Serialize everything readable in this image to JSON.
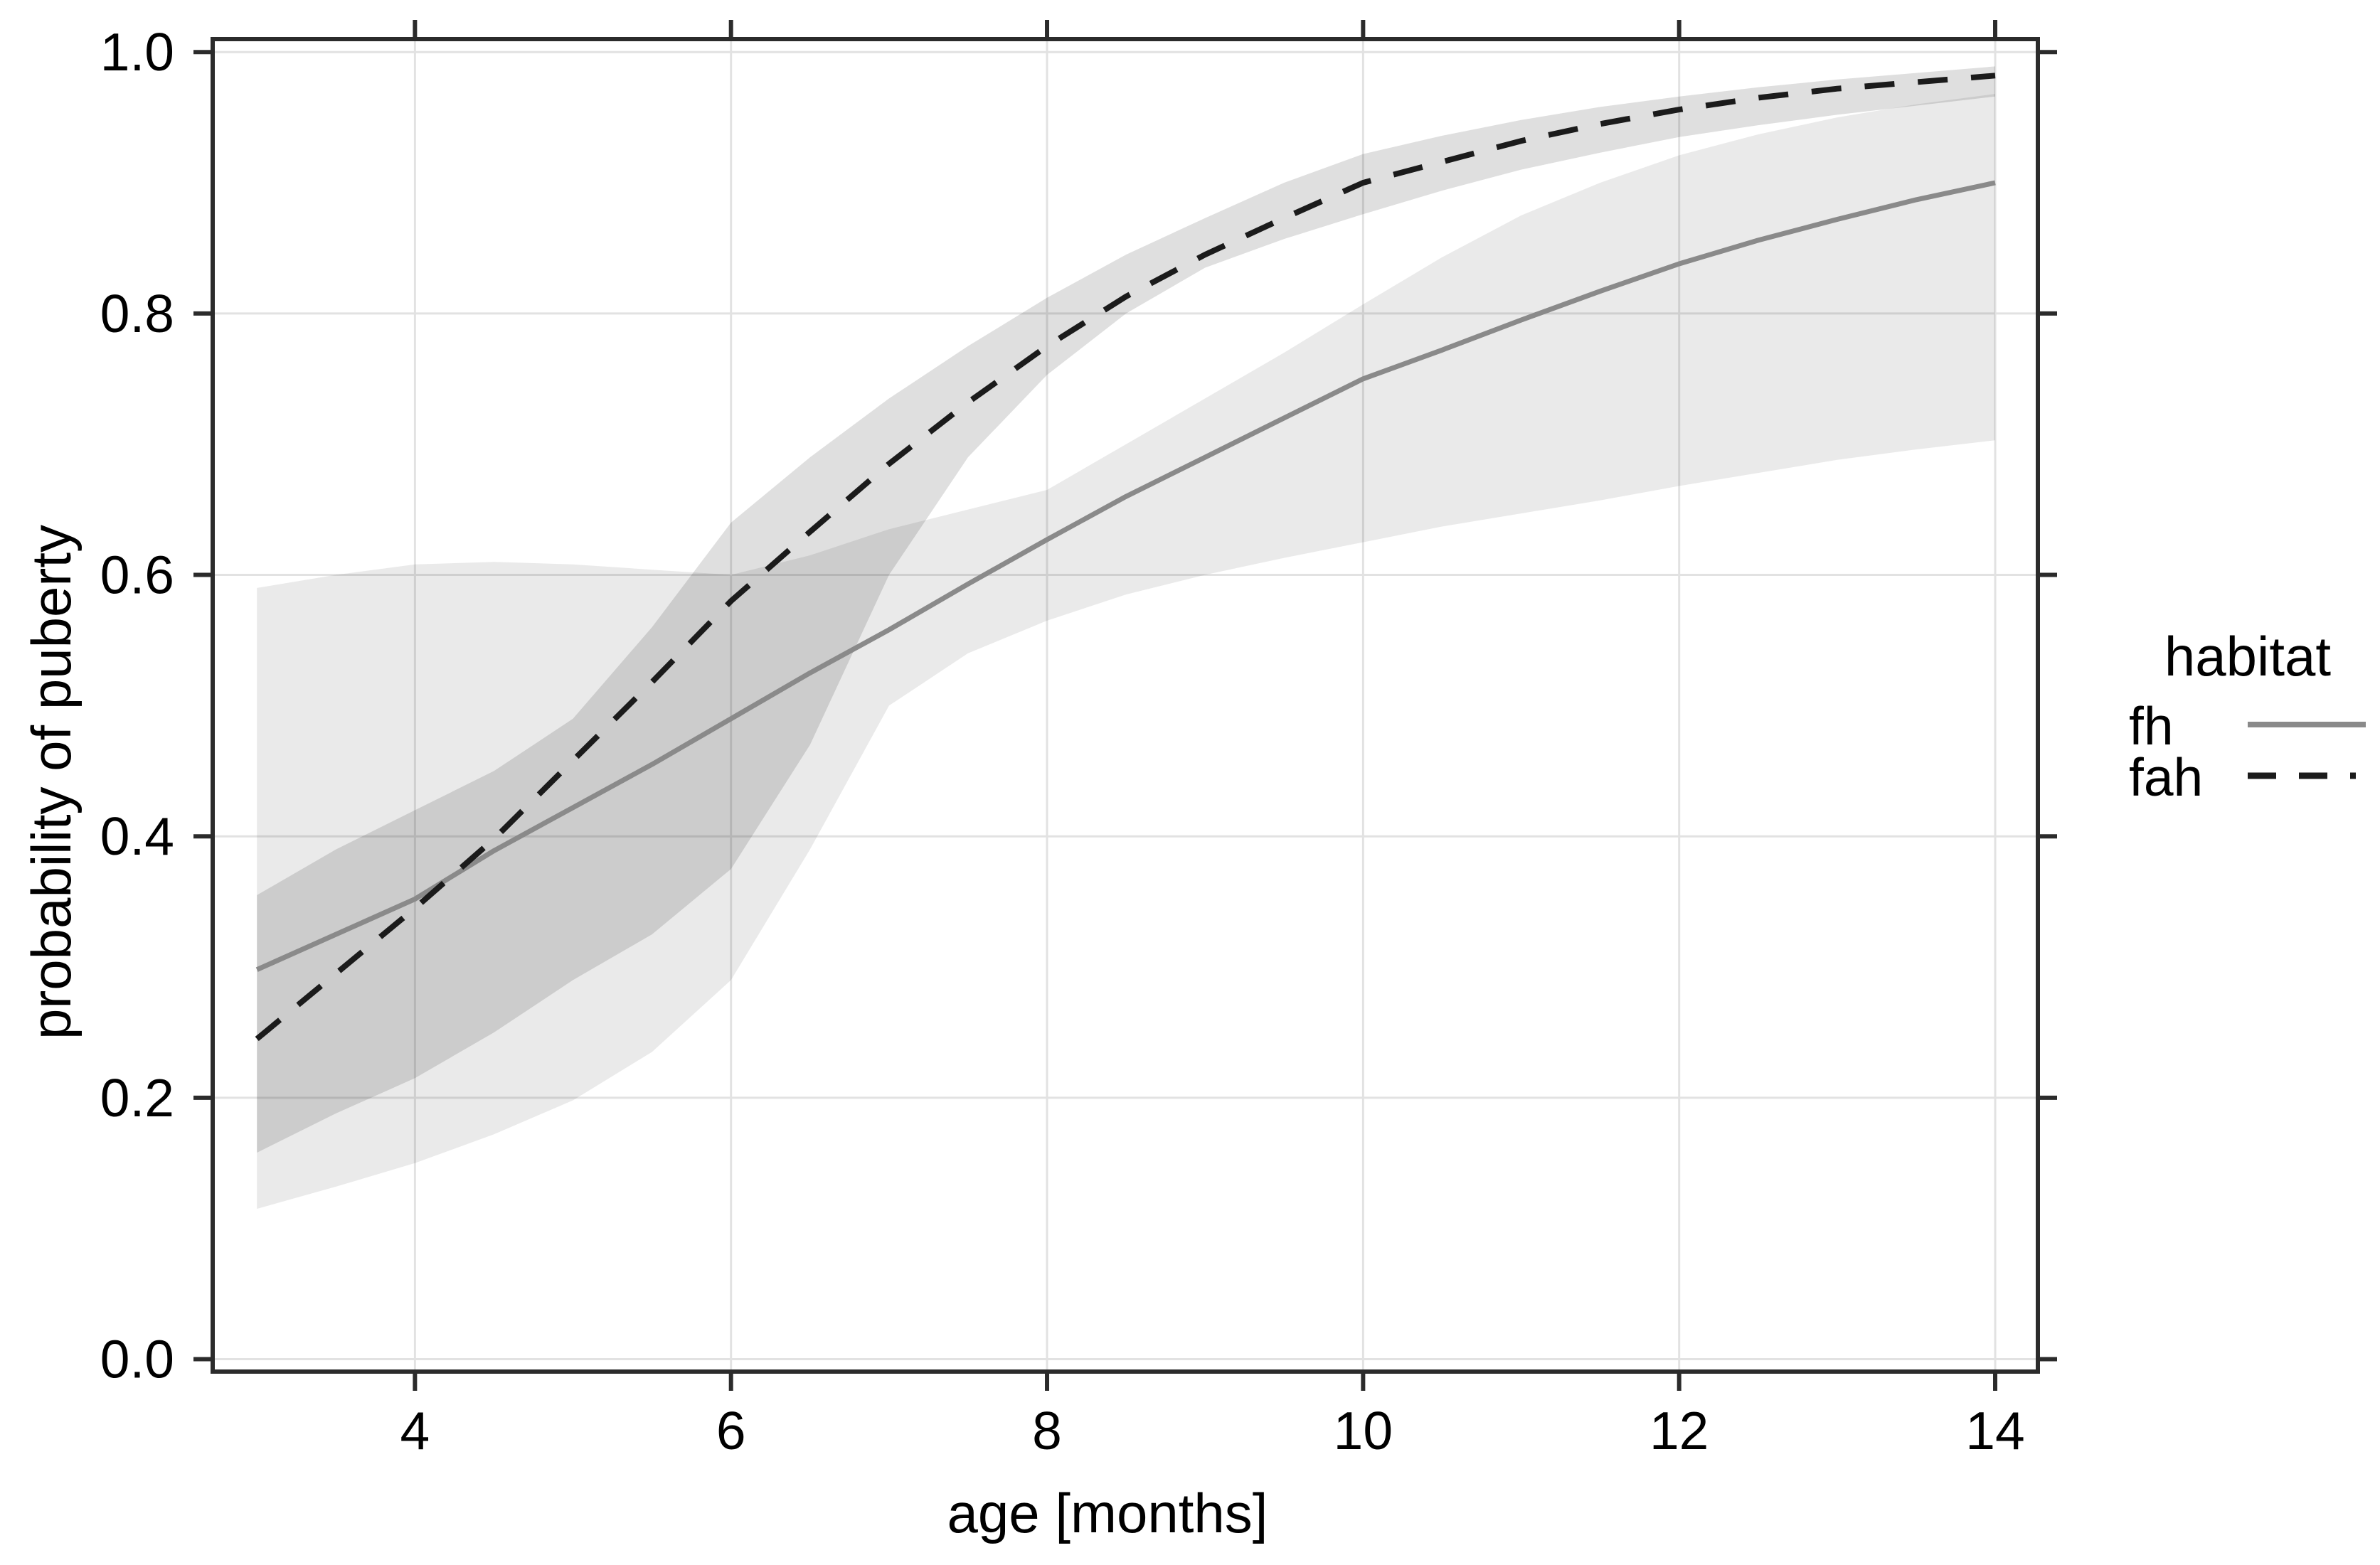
{
  "figure": {
    "x_axis": {
      "title": "age [months]"
    },
    "y_axis": {
      "title": "probability of puberty"
    },
    "legend": {
      "title": "habitat",
      "entries": [
        {
          "label": "fh",
          "line_style": "solid",
          "color": "#8a8a8a"
        },
        {
          "label": "fah",
          "line_style": "dashed",
          "color": "#1b1b1b"
        }
      ]
    }
  },
  "chart_data": {
    "type": "line",
    "title": "",
    "xlabel": "age [months]",
    "ylabel": "probability of puberty",
    "xlim": [
      2.72,
      14.27
    ],
    "ylim": [
      -0.0095,
      1.0099
    ],
    "grid": true,
    "x_ticks": [
      4,
      6,
      8,
      10,
      12,
      14
    ],
    "y_ticks": [
      0.0,
      0.2,
      0.4,
      0.6,
      0.8,
      1.0
    ],
    "y_tick_labels": [
      "0.0",
      "0.2",
      "0.4",
      "0.6",
      "0.8",
      "1.0"
    ],
    "legend_position": "right",
    "x": [
      3,
      3.5,
      4,
      4.5,
      5,
      5.5,
      6,
      6.5,
      7,
      7.5,
      8,
      8.5,
      9,
      9.5,
      10,
      10.5,
      11,
      11.5,
      12,
      12.5,
      13,
      13.5,
      14
    ],
    "series": [
      {
        "name": "fh",
        "style": "solid",
        "line_color": "#8a8a8a",
        "values": [
          0.298,
          0.325,
          0.352,
          0.389,
          0.422,
          0.455,
          0.49,
          0.525,
          0.558,
          0.593,
          0.627,
          0.66,
          0.69,
          0.72,
          0.75,
          0.772,
          0.795,
          0.817,
          0.838,
          0.856,
          0.872,
          0.887,
          0.9
        ],
        "ci_upper": [
          0.59,
          0.6,
          0.608,
          0.61,
          0.608,
          0.604,
          0.6,
          0.615,
          0.635,
          0.65,
          0.665,
          0.7,
          0.735,
          0.77,
          0.807,
          0.843,
          0.875,
          0.9,
          0.921,
          0.937,
          0.95,
          0.96,
          0.968
        ],
        "ci_lower": [
          0.115,
          0.132,
          0.15,
          0.172,
          0.198,
          0.235,
          0.29,
          0.39,
          0.5,
          0.54,
          0.565,
          0.585,
          0.6,
          0.613,
          0.625,
          0.637,
          0.647,
          0.657,
          0.668,
          0.678,
          0.688,
          0.696,
          0.703
        ]
      },
      {
        "name": "fah",
        "style": "dashed",
        "line_color": "#1b1b1b",
        "values": [
          0.245,
          0.295,
          0.345,
          0.398,
          0.458,
          0.518,
          0.58,
          0.633,
          0.685,
          0.732,
          0.775,
          0.813,
          0.845,
          0.873,
          0.9,
          0.916,
          0.932,
          0.945,
          0.956,
          0.965,
          0.972,
          0.977,
          0.982
        ],
        "ci_upper": [
          0.355,
          0.39,
          0.42,
          0.45,
          0.49,
          0.56,
          0.64,
          0.69,
          0.735,
          0.775,
          0.812,
          0.845,
          0.873,
          0.9,
          0.922,
          0.936,
          0.948,
          0.958,
          0.966,
          0.973,
          0.979,
          0.984,
          0.989
        ],
        "ci_lower": [
          0.158,
          0.188,
          0.215,
          0.25,
          0.29,
          0.325,
          0.375,
          0.47,
          0.6,
          0.69,
          0.753,
          0.8,
          0.835,
          0.857,
          0.876,
          0.894,
          0.91,
          0.923,
          0.935,
          0.944,
          0.952,
          0.959,
          0.966
        ]
      }
    ],
    "colors": {
      "ribbon_fh": "#ebebeb",
      "ribbon_fah": "#dedede",
      "ribbon_overlap": "#cdcdcd",
      "gridline": "#e2e2e2",
      "axis": "#2b2b2b",
      "text": "#000000",
      "background": "#ffffff"
    }
  }
}
